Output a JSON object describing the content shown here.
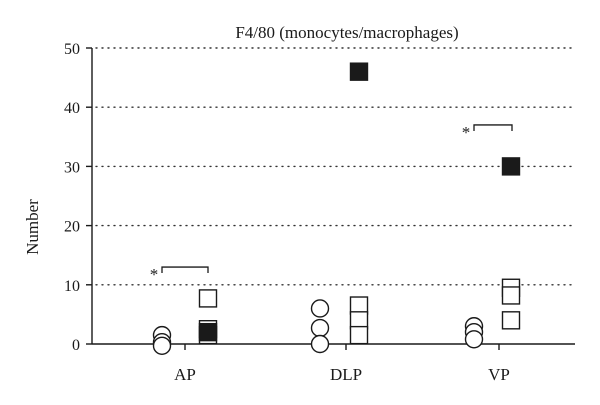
{
  "chart_data": {
    "type": "scatter",
    "title": "F4/80 (monocytes/macrophages)",
    "xlabel": "",
    "ylabel": "Number",
    "ylim": [
      0,
      50
    ],
    "yticks": [
      0,
      10,
      20,
      30,
      40,
      50
    ],
    "grid": "horizontal dotted",
    "categories": [
      "AP",
      "DLP",
      "VP"
    ],
    "series": [
      {
        "marker": "open-circle",
        "points": [
          {
            "category": "AP",
            "y": 1.5
          },
          {
            "category": "AP",
            "y": 0.3
          },
          {
            "category": "AP",
            "y": -0.3
          },
          {
            "category": "DLP",
            "y": 6
          },
          {
            "category": "DLP",
            "y": 2.7
          },
          {
            "category": "DLP",
            "y": 0
          },
          {
            "category": "VP",
            "y": 3
          },
          {
            "category": "VP",
            "y": 2
          },
          {
            "category": "VP",
            "y": 0.8
          }
        ]
      },
      {
        "marker": "open-square",
        "points": [
          {
            "category": "AP",
            "y": 7.7
          },
          {
            "category": "AP",
            "y": 2.5
          },
          {
            "category": "AP",
            "y": 1.5
          },
          {
            "category": "DLP",
            "y": 6.5
          },
          {
            "category": "DLP",
            "y": 4
          },
          {
            "category": "DLP",
            "y": 1.5
          },
          {
            "category": "VP",
            "y": 9.5
          },
          {
            "category": "VP",
            "y": 8.2
          },
          {
            "category": "VP",
            "y": 4
          }
        ]
      },
      {
        "marker": "filled-square",
        "points": [
          {
            "category": "AP",
            "y": 2
          },
          {
            "category": "DLP",
            "y": 46
          },
          {
            "category": "VP",
            "y": 30
          }
        ]
      }
    ],
    "annotations": [
      {
        "text": "*",
        "category": "AP",
        "y": 13
      },
      {
        "text": "*",
        "category": "VP",
        "y": 37
      }
    ]
  }
}
